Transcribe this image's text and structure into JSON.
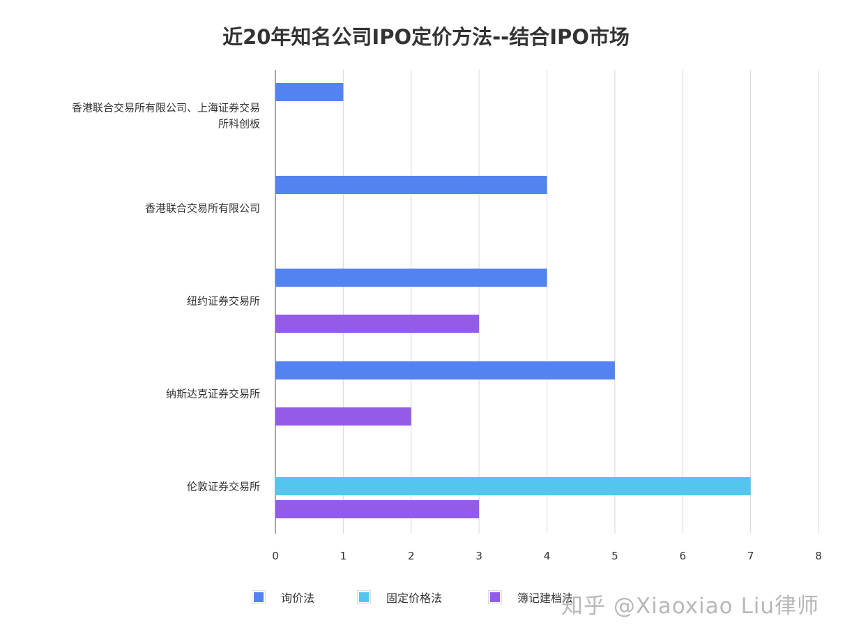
{
  "chart_data": {
    "type": "bar",
    "orientation": "horizontal",
    "title": "近20年知名公司IPO定价方法--结合IPO市场",
    "categories": [
      "香港联合交易所有限公司、上海证券交易所科创板",
      "香港联合交易所有限公司",
      "纽约证券交易所",
      "纳斯达克证券交易所",
      "伦敦证券交易所"
    ],
    "category_lines": [
      [
        "香港联合交易所有限公司、上海证券交易",
        "所科创板"
      ],
      [
        "香港联合交易所有限公司"
      ],
      [
        "纽约证券交易所"
      ],
      [
        "纳斯达克证券交易所"
      ],
      [
        "伦敦证券交易所"
      ]
    ],
    "series": [
      {
        "name": "询价法",
        "color": "#5283f0",
        "values": [
          1,
          4,
          4,
          5,
          0
        ]
      },
      {
        "name": "固定价格法",
        "color": "#52c6ef",
        "values": [
          0,
          0,
          0,
          0,
          7
        ]
      },
      {
        "name": "簿记建档法",
        "color": "#925ce9",
        "values": [
          0,
          0,
          3,
          2,
          3
        ]
      }
    ],
    "xlim": [
      0,
      8
    ],
    "xticks": [
      "0",
      "1",
      "2",
      "3",
      "4",
      "5",
      "6",
      "7",
      "8"
    ],
    "grid": true,
    "legend": "bottom"
  },
  "watermark": "知乎 @Xiaoxiao Liu律师"
}
